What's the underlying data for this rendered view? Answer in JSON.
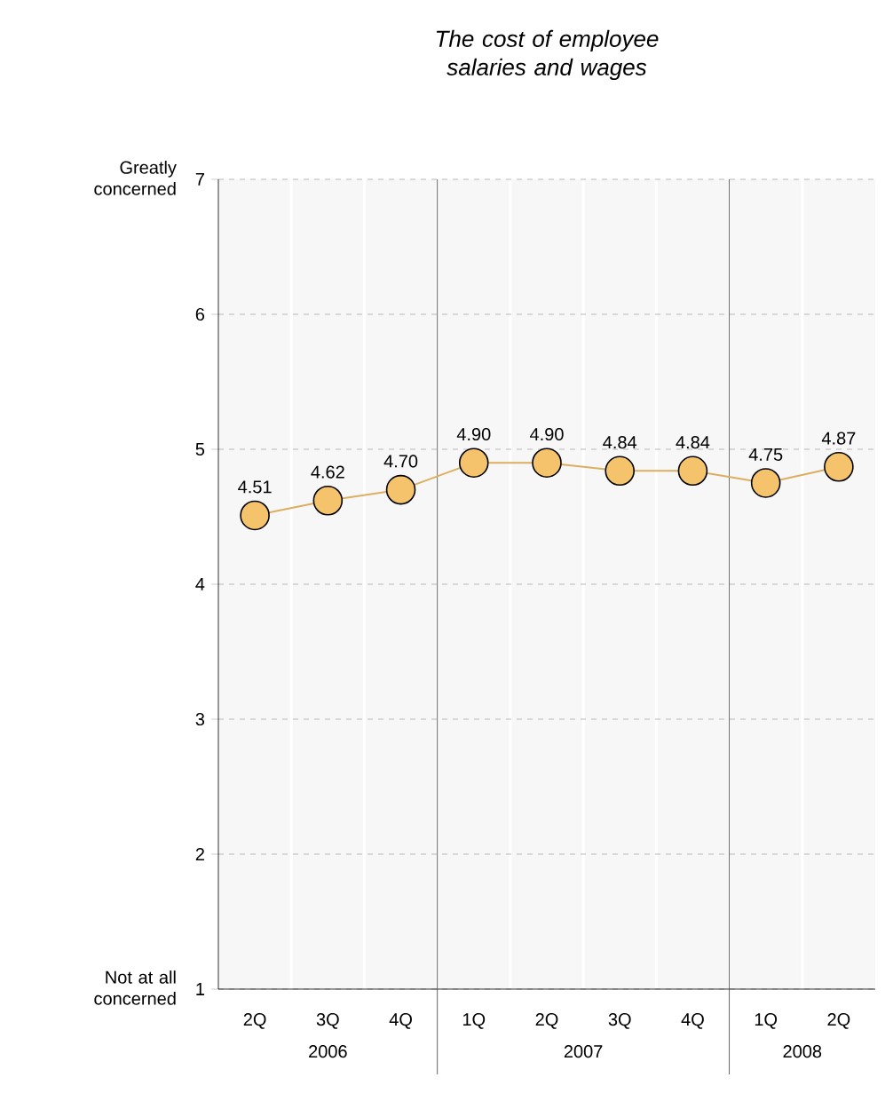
{
  "chart_data": {
    "type": "line",
    "title": "The cost of employee salaries and wages",
    "categories": [
      "2Q",
      "3Q",
      "4Q",
      "1Q",
      "2Q",
      "3Q",
      "4Q",
      "1Q",
      "2Q"
    ],
    "series": [
      {
        "color": "#f4c36b",
        "values": [
          4.51,
          4.62,
          4.7,
          4.9,
          4.9,
          4.84,
          4.84,
          4.75,
          4.87
        ],
        "value_labels": [
          "4.51",
          "4.62",
          "4.70",
          "4.90",
          "4.90",
          "4.84",
          "4.84",
          "4.75",
          "4.87"
        ]
      }
    ],
    "ylim": [
      1,
      7
    ],
    "yticks": [
      1,
      2,
      3,
      4,
      5,
      6,
      7
    ],
    "grid": "y",
    "marker": "circle",
    "line_style": "solid",
    "annotations": [
      "Greatly concerned",
      "Not at all concerned",
      "2006",
      "2007",
      "2008"
    ]
  }
}
